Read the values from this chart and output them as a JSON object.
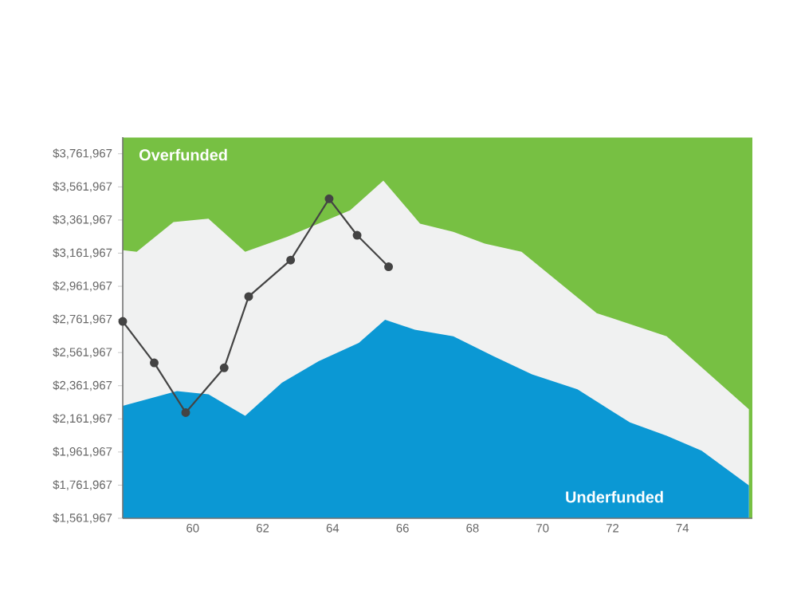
{
  "chart_data": {
    "type": "area",
    "xlim": [
      58,
      76
    ],
    "ylim": [
      1561967,
      3861967
    ],
    "xticks": [
      60,
      62,
      64,
      66,
      68,
      70,
      72,
      74
    ],
    "yticks": [
      {
        "value": 1561967,
        "label": "$1,561,967"
      },
      {
        "value": 1761967,
        "label": "$1,761,967"
      },
      {
        "value": 1961967,
        "label": "$1,961,967"
      },
      {
        "value": 2161967,
        "label": "$2,161,967"
      },
      {
        "value": 2361967,
        "label": "$2,361,967"
      },
      {
        "value": 2561967,
        "label": "$2,561,967"
      },
      {
        "value": 2761967,
        "label": "$2,761,967"
      },
      {
        "value": 2961967,
        "label": "$2,961,967"
      },
      {
        "value": 3161967,
        "label": "$3,161,967"
      },
      {
        "value": 3361967,
        "label": "$3,361,967"
      },
      {
        "value": 3561967,
        "label": "$3,561,967"
      },
      {
        "value": 3761967,
        "label": "$3,761,967"
      }
    ],
    "series": [
      {
        "name": "Overfunded",
        "color": "#77c043",
        "x": [
          58,
          76
        ],
        "values": [
          3860000,
          3860000
        ]
      },
      {
        "color": "#f0f1f1",
        "x": [
          58,
          58.4,
          59.45,
          60.45,
          61.5,
          62.7,
          64.5,
          65.45,
          66.5,
          67.45,
          68.35,
          69.4,
          71.55,
          73.55,
          75.9
        ],
        "values": [
          3180000,
          3170000,
          3350000,
          3370000,
          3170000,
          3260000,
          3420000,
          3600000,
          3340000,
          3290000,
          3220000,
          3170000,
          2800000,
          2660000,
          2220000
        ]
      },
      {
        "name": "Underfunded",
        "color": "#0b98d4",
        "x": [
          58,
          59.55,
          60.45,
          61.5,
          62.55,
          63.6,
          64.75,
          65.5,
          66.35,
          67.45,
          68.6,
          69.7,
          71.0,
          72.5,
          73.55,
          74.55,
          75.9
        ],
        "values": [
          2240000,
          2330000,
          2310000,
          2180000,
          2380000,
          2510000,
          2620000,
          2760000,
          2700000,
          2660000,
          2540000,
          2430000,
          2340000,
          2140000,
          2060000,
          1970000,
          1760000
        ]
      },
      {
        "type": "line",
        "color": "#444444",
        "marker": "circle",
        "line_style": "solid",
        "x": [
          58,
          58.9,
          59.8,
          60.9,
          61.6,
          62.8,
          63.9,
          64.7,
          65.6
        ],
        "values": [
          2750000,
          2500000,
          2200000,
          2470000,
          2900000,
          3120000,
          3490000,
          3270000,
          3080000
        ]
      }
    ]
  }
}
